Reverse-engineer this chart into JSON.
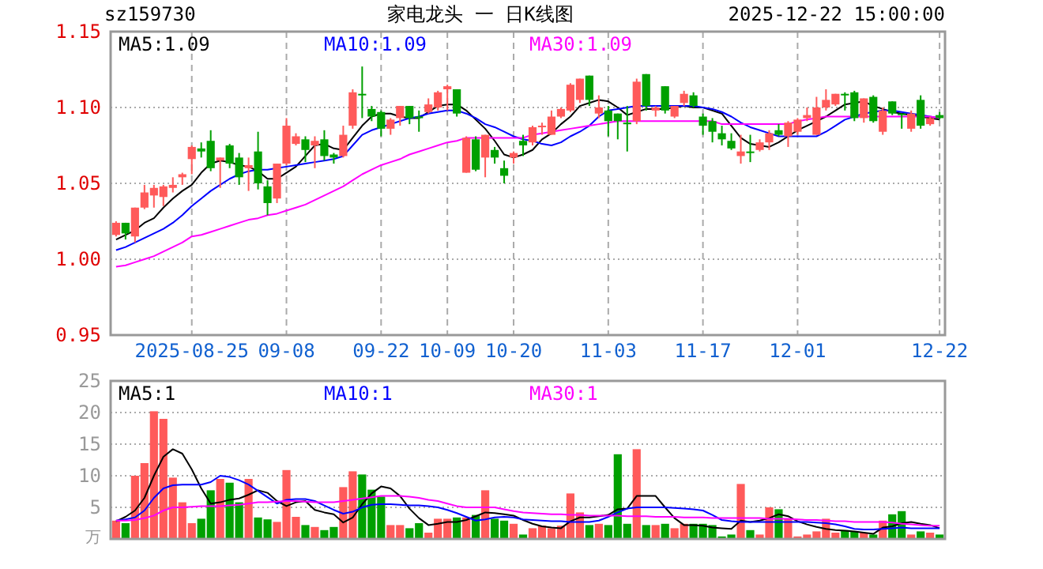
{
  "chart_data": [
    {
      "type": "candlestick",
      "title": "家电龙头 一 日K线图",
      "annotations": [
        "sz159730",
        "2025-12-22 15:00:00"
      ],
      "categories": [
        null,
        null,
        null,
        null,
        null,
        null,
        null,
        null,
        "2025-08-25",
        null,
        null,
        null,
        null,
        null,
        null,
        null,
        null,
        null,
        "09-08",
        null,
        null,
        null,
        null,
        null,
        null,
        null,
        null,
        null,
        "09-22",
        null,
        null,
        null,
        null,
        null,
        null,
        "10-09",
        null,
        null,
        null,
        null,
        null,
        null,
        "10-20",
        null,
        null,
        null,
        null,
        null,
        null,
        null,
        null,
        null,
        "11-03",
        null,
        null,
        null,
        null,
        null,
        null,
        null,
        null,
        null,
        "11-17",
        null,
        null,
        null,
        null,
        null,
        null,
        null,
        null,
        null,
        "12-01",
        null,
        null,
        null,
        null,
        null,
        null,
        null,
        null,
        null,
        null,
        null,
        null,
        null,
        null,
        "12-22"
      ],
      "ohlc": [
        [
          1.016,
          1.025,
          1.015,
          1.024
        ],
        [
          1.024,
          1.024,
          1.013,
          1.017
        ],
        [
          1.015,
          1.034,
          1.011,
          1.034
        ],
        [
          1.034,
          1.049,
          1.033,
          1.044
        ],
        [
          1.042,
          1.049,
          1.034,
          1.047
        ],
        [
          1.041,
          1.049,
          1.035,
          1.048
        ],
        [
          1.047,
          1.054,
          1.044,
          1.049
        ],
        [
          1.054,
          1.057,
          1.049,
          1.056
        ],
        [
          1.066,
          1.075,
          1.056,
          1.074
        ],
        [
          1.073,
          1.077,
          1.067,
          1.071
        ],
        [
          1.078,
          1.085,
          1.058,
          1.06
        ],
        [
          1.065,
          1.067,
          1.047,
          1.067
        ],
        [
          1.075,
          1.076,
          1.06,
          1.063
        ],
        [
          1.067,
          1.07,
          1.049,
          1.054
        ],
        [
          1.06,
          1.067,
          1.045,
          1.062
        ],
        [
          1.071,
          1.084,
          1.046,
          1.05
        ],
        [
          1.048,
          1.052,
          1.029,
          1.037
        ],
        [
          1.04,
          1.063,
          1.037,
          1.063
        ],
        [
          1.063,
          1.093,
          1.062,
          1.088
        ],
        [
          1.076,
          1.083,
          1.075,
          1.081
        ],
        [
          1.079,
          1.081,
          1.064,
          1.072
        ],
        [
          1.075,
          1.081,
          1.06,
          1.078
        ],
        [
          1.079,
          1.085,
          1.065,
          1.068
        ],
        [
          1.069,
          1.07,
          1.063,
          1.067
        ],
        [
          1.068,
          1.088,
          1.067,
          1.082
        ],
        [
          1.088,
          1.112,
          1.086,
          1.11
        ],
        [
          1.109,
          1.127,
          1.093,
          1.108
        ],
        [
          1.099,
          1.101,
          1.091,
          1.094
        ],
        [
          1.097,
          1.098,
          1.081,
          1.086
        ],
        [
          1.086,
          1.093,
          1.082,
          1.092
        ],
        [
          1.093,
          1.101,
          1.088,
          1.101
        ],
        [
          1.101,
          1.101,
          1.089,
          1.093
        ],
        [
          1.094,
          1.098,
          1.084,
          1.093
        ],
        [
          1.097,
          1.106,
          1.096,
          1.102
        ],
        [
          1.1,
          1.111,
          1.098,
          1.11
        ],
        [
          1.112,
          1.115,
          1.098,
          1.114
        ],
        [
          1.112,
          1.112,
          1.094,
          1.096
        ],
        [
          1.057,
          1.081,
          1.057,
          1.08
        ],
        [
          1.079,
          1.081,
          1.058,
          1.059
        ],
        [
          1.067,
          1.082,
          1.054,
          1.082
        ],
        [
          1.072,
          1.074,
          1.063,
          1.067
        ],
        [
          1.06,
          1.065,
          1.05,
          1.055
        ],
        [
          1.067,
          1.071,
          1.063,
          1.07
        ],
        [
          1.078,
          1.082,
          1.068,
          1.075
        ],
        [
          1.077,
          1.088,
          1.075,
          1.087
        ],
        [
          1.087,
          1.09,
          1.082,
          1.088
        ],
        [
          1.082,
          1.098,
          1.082,
          1.094
        ],
        [
          1.094,
          1.1,
          1.093,
          1.099
        ],
        [
          1.098,
          1.116,
          1.097,
          1.115
        ],
        [
          1.105,
          1.119,
          1.103,
          1.119
        ],
        [
          1.121,
          1.121,
          1.101,
          1.105
        ],
        [
          1.096,
          1.108,
          1.093,
          1.1
        ],
        [
          1.098,
          1.101,
          1.081,
          1.091
        ],
        [
          1.096,
          1.096,
          1.079,
          1.091
        ],
        [
          1.09,
          1.101,
          1.071,
          1.089
        ],
        [
          1.091,
          1.119,
          1.089,
          1.117
        ],
        [
          1.122,
          1.122,
          1.098,
          1.101
        ],
        [
          1.098,
          1.101,
          1.094,
          1.1
        ],
        [
          1.114,
          1.114,
          1.096,
          1.098
        ],
        [
          1.094,
          1.101,
          1.093,
          1.101
        ],
        [
          1.103,
          1.111,
          1.101,
          1.109
        ],
        [
          1.108,
          1.11,
          1.1,
          1.101
        ],
        [
          1.094,
          1.096,
          1.082,
          1.088
        ],
        [
          1.091,
          1.093,
          1.077,
          1.084
        ],
        [
          1.083,
          1.088,
          1.075,
          1.079
        ],
        [
          1.078,
          1.083,
          1.072,
          1.073
        ],
        [
          1.068,
          1.082,
          1.063,
          1.071
        ],
        [
          1.071,
          1.082,
          1.064,
          1.07
        ],
        [
          1.072,
          1.079,
          1.071,
          1.077
        ],
        [
          1.077,
          1.085,
          1.072,
          1.083
        ],
        [
          1.085,
          1.089,
          1.081,
          1.082
        ],
        [
          1.081,
          1.091,
          1.074,
          1.09
        ],
        [
          1.084,
          1.093,
          1.082,
          1.092
        ],
        [
          1.093,
          1.1,
          1.091,
          1.095
        ],
        [
          1.082,
          1.107,
          1.082,
          1.1
        ],
        [
          1.1,
          1.112,
          1.098,
          1.105
        ],
        [
          1.102,
          1.109,
          1.101,
          1.109
        ],
        [
          1.109,
          1.11,
          1.098,
          1.108
        ],
        [
          1.11,
          1.111,
          1.091,
          1.093
        ],
        [
          1.093,
          1.106,
          1.09,
          1.106
        ],
        [
          1.107,
          1.108,
          1.09,
          1.091
        ],
        [
          1.084,
          1.1,
          1.082,
          1.098
        ],
        [
          1.104,
          1.104,
          1.095,
          1.096
        ],
        [
          1.096,
          1.096,
          1.086,
          1.095
        ],
        [
          1.086,
          1.098,
          1.084,
          1.096
        ],
        [
          1.105,
          1.108,
          1.086,
          1.088
        ],
        [
          1.089,
          1.094,
          1.088,
          1.093
        ],
        [
          1.095,
          1.097,
          1.092,
          1.093
        ]
      ],
      "colors": [
        "#ff5a5a",
        "#00a000",
        "#ff5a5a",
        "#ff5a5a",
        "#ff5a5a",
        "#ff5a5a",
        "#ff5a5a",
        "#ff5a5a",
        "#ff5a5a",
        "#00a000",
        "#00a000",
        "#ff5a5a",
        "#00a000",
        "#00a000",
        "#ff5a5a",
        "#00a000",
        "#00a000",
        "#ff5a5a",
        "#ff5a5a",
        "#ff5a5a",
        "#00a000",
        "#ff5a5a",
        "#00a000",
        "#00a000",
        "#ff5a5a",
        "#ff5a5a",
        "#00a000",
        "#00a000",
        "#00a000",
        "#ff5a5a",
        "#ff5a5a",
        "#00a000",
        "#00a000",
        "#ff5a5a",
        "#ff5a5a",
        "#ff5a5a",
        "#00a000",
        "#ff5a5a",
        "#00a000",
        "#ff5a5a",
        "#00a000",
        "#00a000",
        "#ff5a5a",
        "#00a000",
        "#ff5a5a",
        "#ff5a5a",
        "#ff5a5a",
        "#ff5a5a",
        "#ff5a5a",
        "#ff5a5a",
        "#00a000",
        "#ff5a5a",
        "#00a000",
        "#00a000",
        "#00a000",
        "#ff5a5a",
        "#00a000",
        "#ff5a5a",
        "#00a000",
        "#ff5a5a",
        "#ff5a5a",
        "#00a000",
        "#00a000",
        "#00a000",
        "#00a000",
        "#00a000",
        "#ff5a5a",
        "#00a000",
        "#ff5a5a",
        "#ff5a5a",
        "#00a000",
        "#ff5a5a",
        "#ff5a5a",
        "#ff5a5a",
        "#ff5a5a",
        "#ff5a5a",
        "#ff5a5a",
        "#00a000",
        "#00a000",
        "#ff5a5a",
        "#00a000",
        "#ff5a5a",
        "#00a000",
        "#00a000",
        "#ff5a5a",
        "#00a000",
        "#ff5a5a",
        "#00a000"
      ],
      "series": [
        {
          "type": "line",
          "name": "MA5:1.09",
          "color": "#000000",
          "values": [
            1.013,
            1.016,
            1.019,
            1.024,
            1.027,
            1.034,
            1.04,
            1.045,
            1.049,
            1.057,
            1.063,
            1.065,
            1.064,
            1.062,
            1.061,
            1.058,
            1.053,
            1.053,
            1.057,
            1.061,
            1.068,
            1.075,
            1.076,
            1.073,
            1.072,
            1.08,
            1.088,
            1.094,
            1.096,
            1.096,
            1.094,
            1.093,
            1.093,
            1.097,
            1.101,
            1.102,
            1.102,
            1.098,
            1.092,
            1.086,
            1.078,
            1.069,
            1.067,
            1.069,
            1.072,
            1.079,
            1.083,
            1.089,
            1.094,
            1.101,
            1.103,
            1.105,
            1.104,
            1.1,
            1.095,
            1.097,
            1.099,
            1.099,
            1.099,
            1.1,
            1.101,
            1.1,
            1.1,
            1.098,
            1.096,
            1.088,
            1.08,
            1.076,
            1.075,
            1.074,
            1.077,
            1.081,
            1.085,
            1.088,
            1.091,
            1.094,
            1.098,
            1.102,
            1.103,
            1.104,
            1.101,
            1.099,
            1.097,
            1.096,
            1.095,
            1.094,
            1.093,
            1.092
          ]
        },
        {
          "type": "line",
          "name": "MA10:1.09",
          "color": "#0000ff",
          "values": [
            1.006,
            1.008,
            1.011,
            1.014,
            1.017,
            1.02,
            1.024,
            1.029,
            1.035,
            1.04,
            1.045,
            1.049,
            1.053,
            1.056,
            1.058,
            1.059,
            1.059,
            1.06,
            1.061,
            1.062,
            1.063,
            1.064,
            1.065,
            1.066,
            1.068,
            1.075,
            1.082,
            1.085,
            1.087,
            1.089,
            1.091,
            1.093,
            1.094,
            1.096,
            1.097,
            1.098,
            1.098,
            1.096,
            1.093,
            1.089,
            1.087,
            1.084,
            1.081,
            1.079,
            1.078,
            1.076,
            1.075,
            1.077,
            1.081,
            1.084,
            1.088,
            1.094,
            1.098,
            1.099,
            1.1,
            1.101,
            1.101,
            1.101,
            1.101,
            1.101,
            1.101,
            1.101,
            1.1,
            1.099,
            1.097,
            1.094,
            1.09,
            1.087,
            1.085,
            1.083,
            1.081,
            1.081,
            1.081,
            1.081,
            1.081,
            1.084,
            1.088,
            1.092,
            1.094,
            1.096,
            1.097,
            1.098,
            1.098,
            1.097,
            1.096,
            1.095,
            1.094,
            1.093
          ]
        },
        {
          "type": "line",
          "name": "MA30:1.09",
          "color": "#ff00ff",
          "values": [
            0.995,
            0.996,
            0.998,
            1.0,
            1.002,
            1.005,
            1.008,
            1.011,
            1.015,
            1.016,
            1.018,
            1.02,
            1.022,
            1.024,
            1.026,
            1.027,
            1.029,
            1.03,
            1.032,
            1.034,
            1.036,
            1.039,
            1.042,
            1.045,
            1.048,
            1.052,
            1.056,
            1.059,
            1.062,
            1.064,
            1.066,
            1.069,
            1.071,
            1.073,
            1.075,
            1.077,
            1.078,
            1.08,
            1.08,
            1.08,
            1.08,
            1.08,
            1.08,
            1.08,
            1.082,
            1.083,
            1.084,
            1.085,
            1.086,
            1.087,
            1.088,
            1.089,
            1.09,
            1.091,
            1.091,
            1.091,
            1.091,
            1.091,
            1.091,
            1.091,
            1.091,
            1.091,
            1.091,
            1.091,
            1.089,
            1.089,
            1.089,
            1.089,
            1.089,
            1.089,
            1.089,
            1.089,
            1.091,
            1.092,
            1.093,
            1.094,
            1.094,
            1.094,
            1.094,
            1.094,
            1.094,
            1.094,
            1.094,
            1.094,
            1.094,
            1.094,
            1.094,
            1.093
          ]
        }
      ],
      "ylim": [
        0.95,
        1.15
      ],
      "yticks": [
        {
          "value": 0.95,
          "label": "0.95"
        },
        {
          "value": 1.0,
          "label": "1.00"
        },
        {
          "value": 1.05,
          "label": "1.05"
        },
        {
          "value": 1.1,
          "label": "1.10"
        },
        {
          "value": 1.15,
          "label": "1.15"
        }
      ],
      "grid": true,
      "legend": "top left"
    },
    {
      "type": "bar",
      "ylabel": "万",
      "categories": [
        null,
        null,
        null,
        null,
        null,
        null,
        null,
        null,
        null,
        null,
        null,
        null,
        null,
        null,
        null,
        null,
        null,
        null,
        null,
        null,
        null,
        null,
        null,
        null,
        null,
        null,
        null,
        null,
        null,
        null,
        null,
        null,
        null,
        null,
        null,
        null,
        null,
        null,
        null,
        null,
        null,
        null,
        null,
        null,
        null,
        null,
        null,
        null,
        null,
        null,
        null,
        null,
        null,
        null,
        null,
        null,
        null,
        null,
        null,
        null,
        null,
        null,
        null,
        null,
        null,
        null,
        null,
        null,
        null,
        null,
        null,
        null,
        null,
        null,
        null,
        null,
        null,
        null,
        null,
        null,
        null,
        null,
        null,
        null,
        null,
        null,
        null,
        null
      ],
      "values": [
        2.9,
        2.5,
        10.0,
        12.0,
        20.2,
        19.0,
        9.7,
        5.8,
        2.5,
        3.2,
        7.7,
        9.5,
        8.9,
        5.8,
        9.5,
        3.4,
        3.1,
        2.7,
        10.9,
        3.5,
        2.2,
        1.9,
        1.4,
        1.9,
        8.2,
        10.7,
        10.2,
        7.8,
        6.7,
        2.2,
        2.2,
        1.7,
        2.5,
        1.0,
        3.2,
        3.2,
        3.4,
        3.4,
        3.8,
        7.7,
        3.2,
        2.9,
        2.4,
        0.7,
        1.7,
        2.1,
        1.7,
        2.1,
        7.2,
        4.2,
        2.2,
        2.4,
        2.2,
        13.4,
        2.4,
        14.2,
        2.2,
        2.2,
        2.4,
        1.7,
        2.4,
        2.4,
        2.4,
        2.2,
        0.4,
        0.7,
        8.7,
        1.4,
        0.7,
        5.0,
        4.7,
        3.2,
        0.4,
        0.7,
        1.2,
        3.2,
        1.0,
        1.4,
        1.2,
        1.0,
        0.7,
        2.9,
        3.9,
        4.4,
        0.7,
        1.2,
        1.0,
        0.7
      ],
      "colors": [
        "#ff5a5a",
        "#00a000",
        "#ff5a5a",
        "#ff5a5a",
        "#ff5a5a",
        "#ff5a5a",
        "#ff5a5a",
        "#ff5a5a",
        "#ff5a5a",
        "#00a000",
        "#00a000",
        "#ff5a5a",
        "#00a000",
        "#00a000",
        "#ff5a5a",
        "#00a000",
        "#00a000",
        "#ff5a5a",
        "#ff5a5a",
        "#ff5a5a",
        "#00a000",
        "#ff5a5a",
        "#00a000",
        "#00a000",
        "#ff5a5a",
        "#ff5a5a",
        "#00a000",
        "#00a000",
        "#00a000",
        "#ff5a5a",
        "#ff5a5a",
        "#00a000",
        "#00a000",
        "#ff5a5a",
        "#ff5a5a",
        "#ff5a5a",
        "#00a000",
        "#ff5a5a",
        "#00a000",
        "#ff5a5a",
        "#00a000",
        "#00a000",
        "#ff5a5a",
        "#00a000",
        "#ff5a5a",
        "#ff5a5a",
        "#ff5a5a",
        "#ff5a5a",
        "#ff5a5a",
        "#ff5a5a",
        "#00a000",
        "#ff5a5a",
        "#00a000",
        "#00a000",
        "#00a000",
        "#ff5a5a",
        "#00a000",
        "#ff5a5a",
        "#00a000",
        "#ff5a5a",
        "#ff5a5a",
        "#00a000",
        "#00a000",
        "#00a000",
        "#00a000",
        "#00a000",
        "#ff5a5a",
        "#00a000",
        "#ff5a5a",
        "#ff5a5a",
        "#00a000",
        "#ff5a5a",
        "#ff5a5a",
        "#ff5a5a",
        "#ff5a5a",
        "#ff5a5a",
        "#ff5a5a",
        "#00a000",
        "#00a000",
        "#ff5a5a",
        "#00a000",
        "#ff5a5a",
        "#00a000",
        "#00a000",
        "#ff5a5a",
        "#00a000",
        "#ff5a5a",
        "#00a000"
      ],
      "series": [
        {
          "type": "line",
          "name": "MA5:1",
          "color": "#000000",
          "values": [
            2.8,
            3.5,
            4.5,
            6.5,
            10.0,
            13.0,
            14.2,
            13.5,
            11.0,
            8.0,
            5.6,
            5.8,
            6.2,
            6.4,
            7.0,
            7.7,
            7.3,
            6.0,
            5.2,
            5.8,
            6.0,
            4.6,
            4.2,
            3.9,
            2.6,
            3.4,
            5.5,
            7.2,
            8.3,
            8.0,
            6.8,
            4.8,
            3.3,
            2.2,
            2.4,
            2.7,
            2.7,
            3.0,
            3.6,
            4.2,
            4.1,
            3.9,
            3.7,
            3.0,
            2.4,
            2.0,
            1.8,
            1.7,
            2.8,
            3.4,
            3.4,
            3.6,
            3.8,
            4.7,
            4.8,
            6.8,
            6.8,
            6.8,
            5.0,
            3.3,
            2.2,
            2.2,
            2.1,
            1.8,
            1.7,
            1.6,
            2.9,
            2.7,
            2.9,
            3.3,
            3.9,
            3.6,
            2.8,
            2.3,
            1.9,
            1.6,
            1.4,
            1.3,
            1.2,
            1.0,
            0.8,
            1.8,
            2.0,
            2.5,
            2.7,
            2.4,
            2.2,
            1.7
          ]
        },
        {
          "type": "line",
          "name": "MA10:1",
          "color": "#0000ff",
          "values": [
            2.9,
            3.1,
            3.4,
            4.5,
            6.5,
            8.0,
            8.5,
            8.6,
            8.6,
            8.6,
            9.0,
            10.0,
            9.8,
            9.3,
            8.6,
            7.6,
            6.6,
            5.6,
            6.2,
            6.3,
            6.3,
            6.0,
            5.3,
            4.6,
            4.0,
            4.3,
            5.0,
            5.4,
            5.5,
            5.5,
            5.4,
            5.3,
            5.3,
            5.2,
            5.0,
            4.6,
            4.1,
            3.5,
            2.9,
            3.1,
            3.4,
            3.5,
            3.4,
            3.1,
            3.0,
            2.9,
            2.8,
            2.8,
            2.7,
            2.7,
            2.7,
            2.9,
            3.5,
            4.2,
            4.8,
            5.0,
            5.0,
            5.0,
            5.0,
            4.9,
            4.8,
            4.7,
            4.5,
            3.8,
            3.0,
            2.8,
            2.7,
            2.7,
            2.7,
            2.7,
            2.7,
            2.7,
            2.7,
            2.7,
            2.6,
            2.5,
            2.3,
            2.0,
            1.6,
            1.5,
            1.5,
            1.6,
            1.7,
            1.8,
            1.7,
            1.7,
            1.7,
            1.7
          ]
        },
        {
          "type": "line",
          "name": "MA30:1",
          "color": "#ff00ff",
          "values": [
            2.9,
            2.9,
            3.0,
            3.3,
            3.7,
            4.5,
            5.0,
            5.0,
            5.1,
            5.2,
            5.2,
            5.2,
            5.3,
            5.4,
            5.6,
            5.8,
            5.8,
            5.9,
            6.0,
            6.0,
            5.9,
            5.8,
            5.8,
            5.8,
            6.0,
            6.2,
            6.4,
            6.6,
            6.8,
            6.8,
            6.8,
            6.7,
            6.5,
            6.2,
            6.0,
            5.6,
            5.2,
            5.0,
            5.0,
            5.0,
            5.0,
            4.7,
            4.4,
            4.2,
            4.1,
            4.0,
            3.9,
            3.9,
            3.8,
            3.8,
            3.7,
            3.7,
            3.7,
            3.7,
            3.6,
            3.6,
            3.6,
            3.5,
            3.5,
            3.5,
            3.4,
            3.4,
            3.4,
            3.3,
            3.3,
            3.3,
            3.3,
            3.3,
            3.3,
            3.2,
            3.2,
            3.2,
            3.1,
            3.0,
            3.0,
            2.9,
            2.8,
            2.8,
            2.7,
            2.7,
            2.7,
            2.7,
            2.6,
            2.4,
            2.3,
            2.2,
            2.1,
            2.1
          ]
        }
      ],
      "ylim": [
        0,
        25
      ],
      "yticks": [
        5,
        10,
        15,
        20,
        25
      ],
      "grid": true,
      "legend": "top left",
      "tick_labels": "y"
    }
  ]
}
